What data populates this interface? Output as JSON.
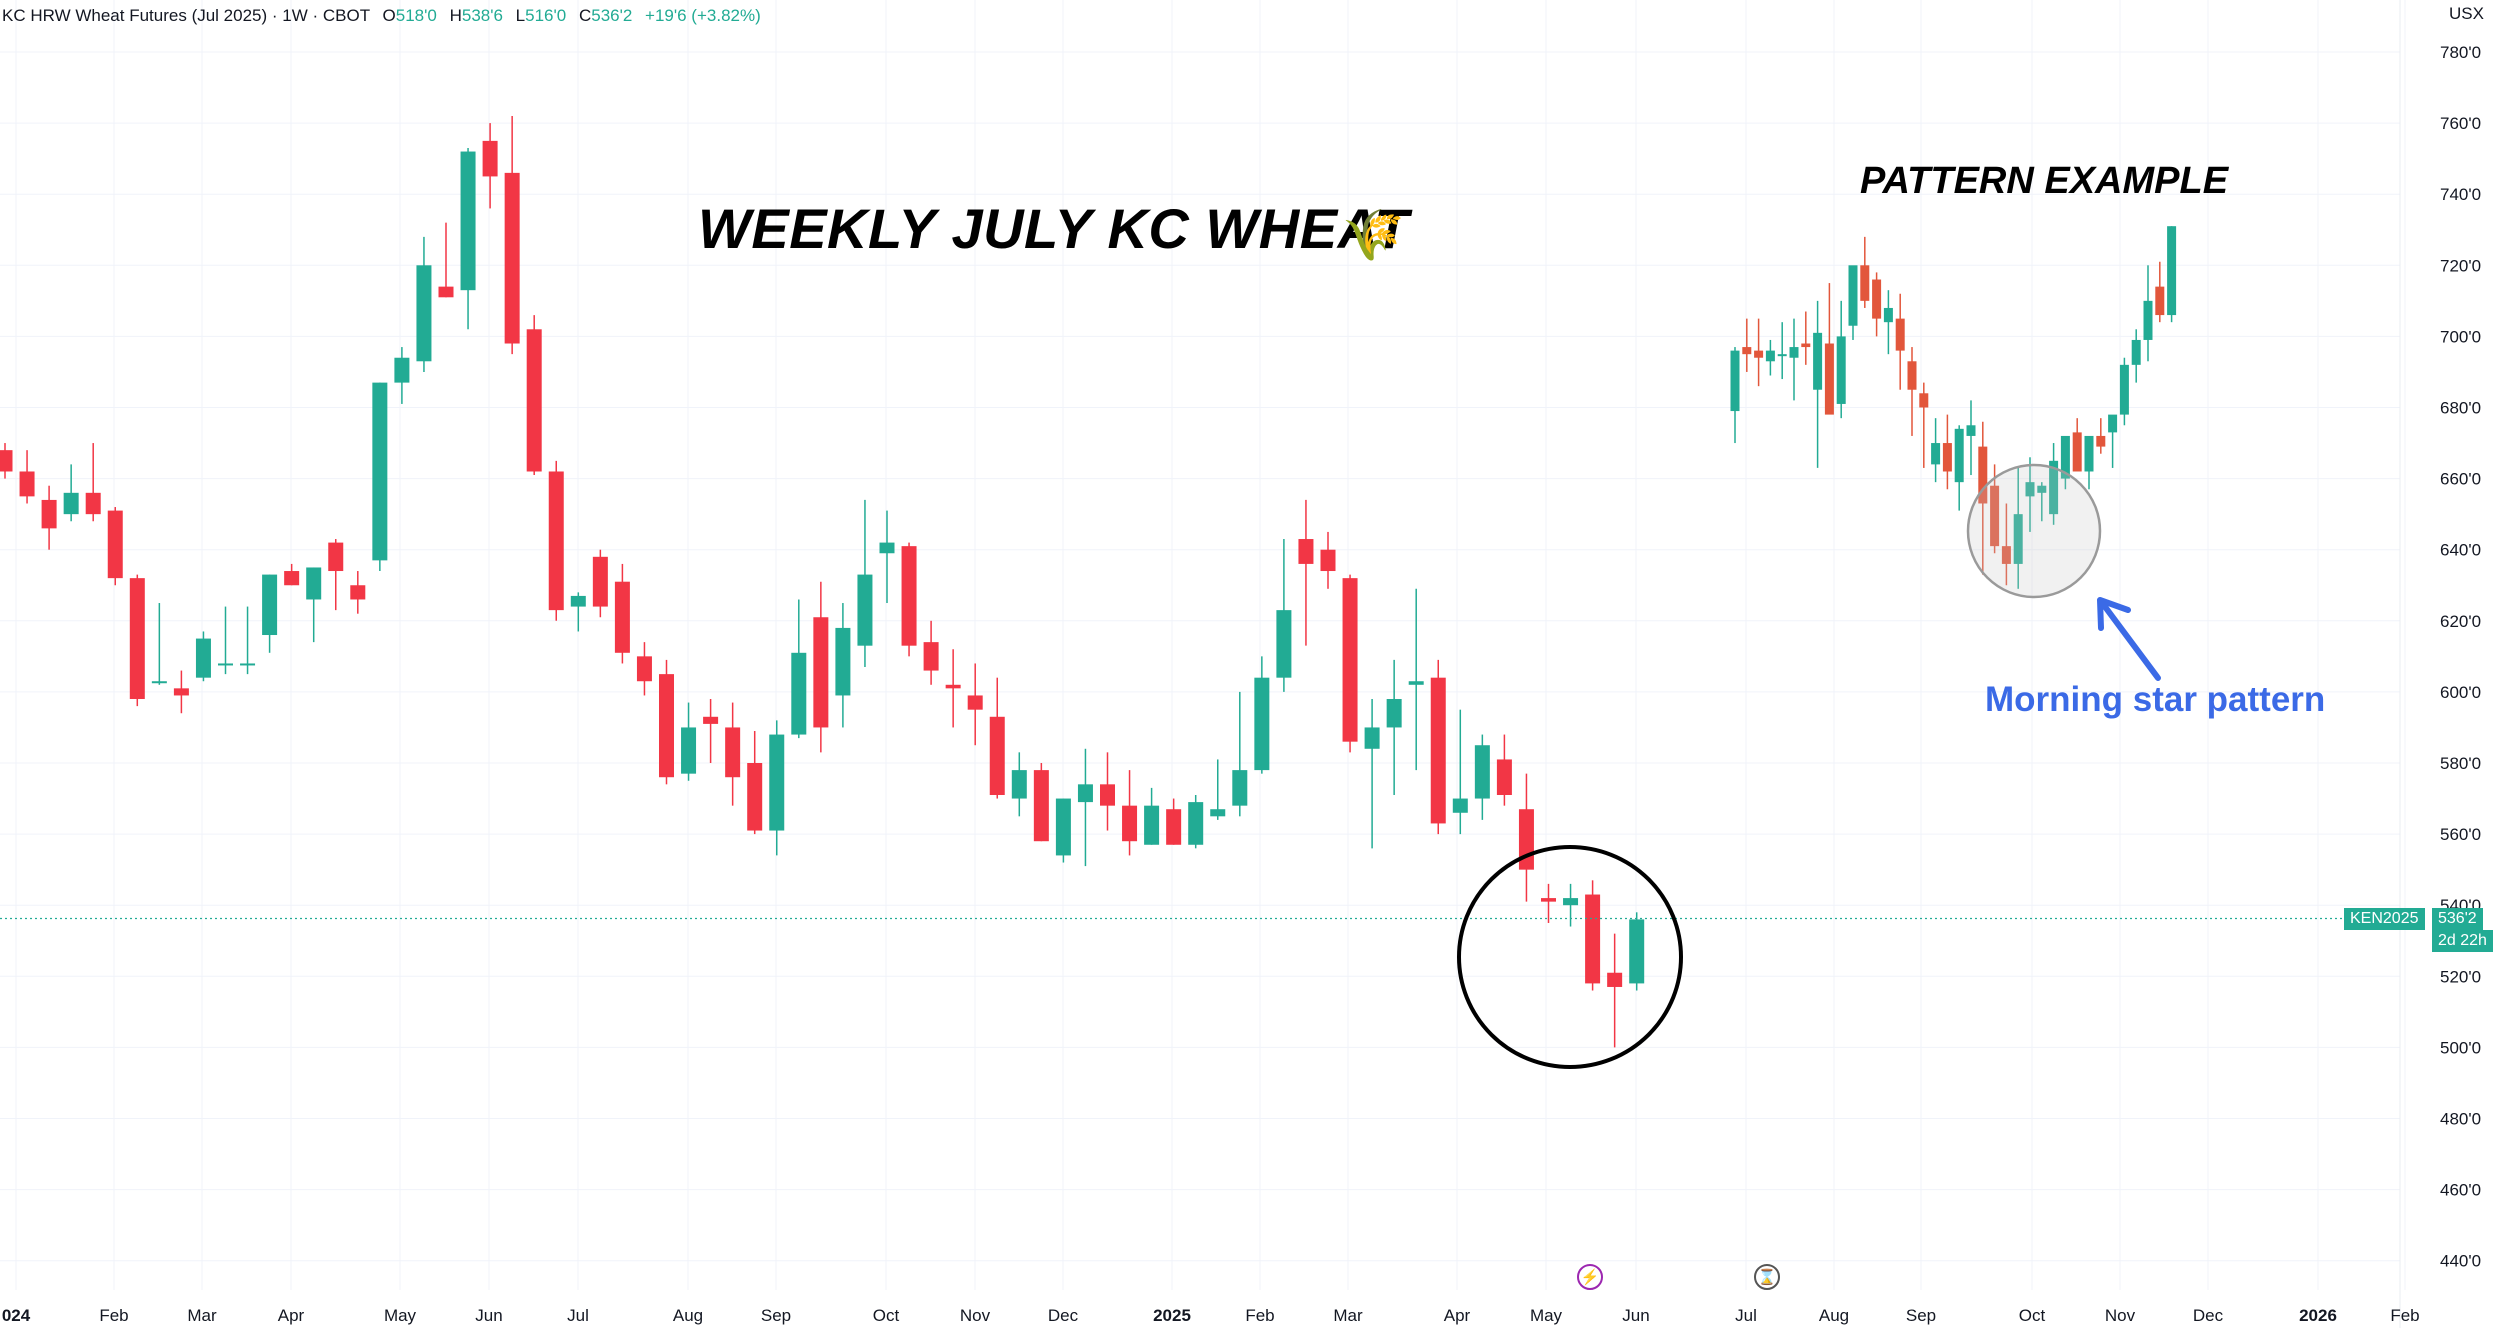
{
  "header": {
    "symbol": "KC HRW Wheat Futures (Jul 2025) · 1W · CBOT",
    "o_label": "O",
    "o_value": "518'0",
    "h_label": "H",
    "h_value": "538'6",
    "l_label": "L",
    "l_value": "516'0",
    "c_label": "C",
    "c_value": "536'2",
    "change": "+19'6 (+3.82%)"
  },
  "currency": "USX",
  "annotations": {
    "title": "WEEKLY JULY KC WHEAT",
    "title_emoji": "🌾",
    "pattern_title": "PATTERN EXAMPLE",
    "pattern_label": "Morning star pattern"
  },
  "price_tag": {
    "symbol": "KEN2025",
    "price": "536'2",
    "countdown": "2d 22h"
  },
  "icons": {
    "event_icon": "lightning-icon",
    "session_icon": "hourglass-icon"
  },
  "colors": {
    "up": "#22ab94",
    "down": "#f23645",
    "pattern_down": "#e2563b",
    "accent": "#3b6ae6"
  },
  "chart_data": {
    "type": "candlestick",
    "interval": "1W",
    "y_axis": {
      "min": 440,
      "max": 780,
      "step": 20,
      "ticks": [
        "780'0",
        "760'0",
        "740'0",
        "720'0",
        "700'0",
        "680'0",
        "660'0",
        "640'0",
        "620'0",
        "600'0",
        "580'0",
        "560'0",
        "540'0",
        "520'0",
        "500'0",
        "480'0",
        "460'0",
        "440'0"
      ]
    },
    "x_ticks": [
      "024",
      "Feb",
      "Mar",
      "Apr",
      "May",
      "Jun",
      "Jul",
      "Aug",
      "Sep",
      "Oct",
      "Nov",
      "Dec",
      "2025",
      "Feb",
      "Mar",
      "Apr",
      "May",
      "Jun",
      "Jul",
      "Aug",
      "Sep",
      "Oct",
      "Nov",
      "Dec",
      "2026",
      "Feb"
    ],
    "last_price": 536.25,
    "candles": [
      [
        668,
        670,
        660,
        662
      ],
      [
        662,
        668,
        653,
        655
      ],
      [
        654,
        658,
        640,
        646
      ],
      [
        650,
        664,
        648,
        656
      ],
      [
        656,
        670,
        648,
        650
      ],
      [
        651,
        652,
        630,
        632
      ],
      [
        632,
        633,
        596,
        598
      ],
      [
        603,
        625,
        602,
        603
      ],
      [
        601,
        606,
        594,
        599
      ],
      [
        604,
        617,
        603,
        615
      ],
      [
        608,
        624,
        605,
        608
      ],
      [
        608,
        624,
        605,
        608
      ],
      [
        616,
        633,
        611,
        633
      ],
      [
        634,
        636,
        630,
        630
      ],
      [
        626,
        635,
        614,
        635
      ],
      [
        642,
        643,
        623,
        634
      ],
      [
        630,
        634,
        622,
        626
      ],
      [
        637,
        687,
        634,
        687
      ],
      [
        687,
        697,
        681,
        694
      ],
      [
        693,
        728,
        690,
        720
      ],
      [
        714,
        732,
        711,
        711
      ],
      [
        713,
        753,
        702,
        752
      ],
      [
        755,
        760,
        736,
        745
      ],
      [
        746,
        762,
        695,
        698
      ],
      [
        702,
        706,
        661,
        662
      ],
      [
        662,
        665,
        620,
        623
      ],
      [
        624,
        628,
        617,
        627
      ],
      [
        638,
        640,
        621,
        624
      ],
      [
        631,
        636,
        608,
        611
      ],
      [
        610,
        614,
        599,
        603
      ],
      [
        605,
        609,
        574,
        576
      ],
      [
        577,
        597,
        575,
        590
      ],
      [
        593,
        598,
        580,
        591
      ],
      [
        590,
        597,
        568,
        576
      ],
      [
        580,
        589,
        560,
        561
      ],
      [
        561,
        592,
        554,
        588
      ],
      [
        588,
        626,
        587,
        611
      ],
      [
        621,
        631,
        583,
        590
      ],
      [
        599,
        625,
        590,
        618
      ],
      [
        613,
        654,
        607,
        633
      ],
      [
        639,
        651,
        625,
        642
      ],
      [
        641,
        642,
        610,
        613
      ],
      [
        614,
        620,
        602,
        606
      ],
      [
        602,
        612,
        590,
        601
      ],
      [
        599,
        608,
        585,
        595
      ],
      [
        593,
        604,
        570,
        571
      ],
      [
        570,
        583,
        565,
        578
      ],
      [
        578,
        580,
        558,
        558
      ],
      [
        554,
        570,
        552,
        570
      ],
      [
        569,
        584,
        551,
        574
      ],
      [
        574,
        583,
        561,
        568
      ],
      [
        568,
        578,
        554,
        558
      ],
      [
        557,
        573,
        557,
        568
      ],
      [
        567,
        570,
        557,
        557
      ],
      [
        557,
        571,
        556,
        569
      ],
      [
        565,
        581,
        564,
        567
      ],
      [
        568,
        600,
        565,
        578
      ],
      [
        578,
        610,
        577,
        604
      ],
      [
        604,
        643,
        600,
        623
      ],
      [
        643,
        654,
        613,
        636
      ],
      [
        640,
        645,
        629,
        634
      ],
      [
        632,
        633,
        583,
        586
      ],
      [
        584,
        598,
        556,
        590
      ],
      [
        590,
        609,
        571,
        598
      ],
      [
        602,
        629,
        578,
        603
      ],
      [
        604,
        609,
        560,
        563
      ],
      [
        566,
        595,
        560,
        570
      ],
      [
        570,
        588,
        564,
        585
      ],
      [
        581,
        588,
        568,
        571
      ],
      [
        567,
        577,
        541,
        550
      ],
      [
        542,
        546,
        535,
        541
      ],
      [
        540,
        546,
        534,
        542
      ],
      [
        543,
        547,
        516,
        518
      ],
      [
        521,
        532,
        500,
        517
      ],
      [
        518,
        538,
        516,
        536
      ]
    ],
    "pattern_candles": [
      [
        679,
        697,
        670,
        696
      ],
      [
        697,
        705,
        690,
        695
      ],
      [
        696,
        705,
        686,
        694
      ],
      [
        693,
        699,
        689,
        696
      ],
      [
        695,
        704,
        688,
        695
      ],
      [
        694,
        705,
        682,
        697
      ],
      [
        698,
        707,
        692,
        697
      ],
      [
        685,
        710,
        663,
        701
      ],
      [
        698,
        715,
        690,
        678
      ],
      [
        681,
        710,
        677,
        700
      ],
      [
        703,
        715,
        699,
        720
      ],
      [
        720,
        728,
        708,
        710
      ],
      [
        716,
        718,
        700,
        705
      ],
      [
        704,
        713,
        695,
        708
      ],
      [
        705,
        712,
        685,
        696
      ],
      [
        693,
        697,
        672,
        685
      ],
      [
        684,
        687,
        663,
        680
      ],
      [
        664,
        677,
        659,
        670
      ],
      [
        670,
        678,
        657,
        662
      ],
      [
        659,
        675,
        651,
        674
      ],
      [
        672,
        682,
        661,
        675
      ],
      [
        669,
        676,
        633,
        653
      ],
      [
        658,
        664,
        639,
        641
      ],
      [
        641,
        653,
        630,
        636
      ],
      [
        636,
        663,
        629,
        650
      ],
      [
        655,
        666,
        645,
        659
      ],
      [
        656,
        659,
        648,
        658
      ],
      [
        650,
        670,
        647,
        665
      ],
      [
        660,
        667,
        657,
        672
      ],
      [
        673,
        677,
        665,
        662
      ],
      [
        662,
        669,
        657,
        672
      ],
      [
        672,
        677,
        667,
        669
      ],
      [
        673,
        676,
        663,
        678
      ],
      [
        678,
        694,
        675,
        692
      ],
      [
        692,
        702,
        687,
        699
      ],
      [
        699,
        720,
        693,
        710
      ],
      [
        714,
        721,
        704,
        706
      ],
      [
        706,
        731,
        704,
        731
      ]
    ]
  }
}
